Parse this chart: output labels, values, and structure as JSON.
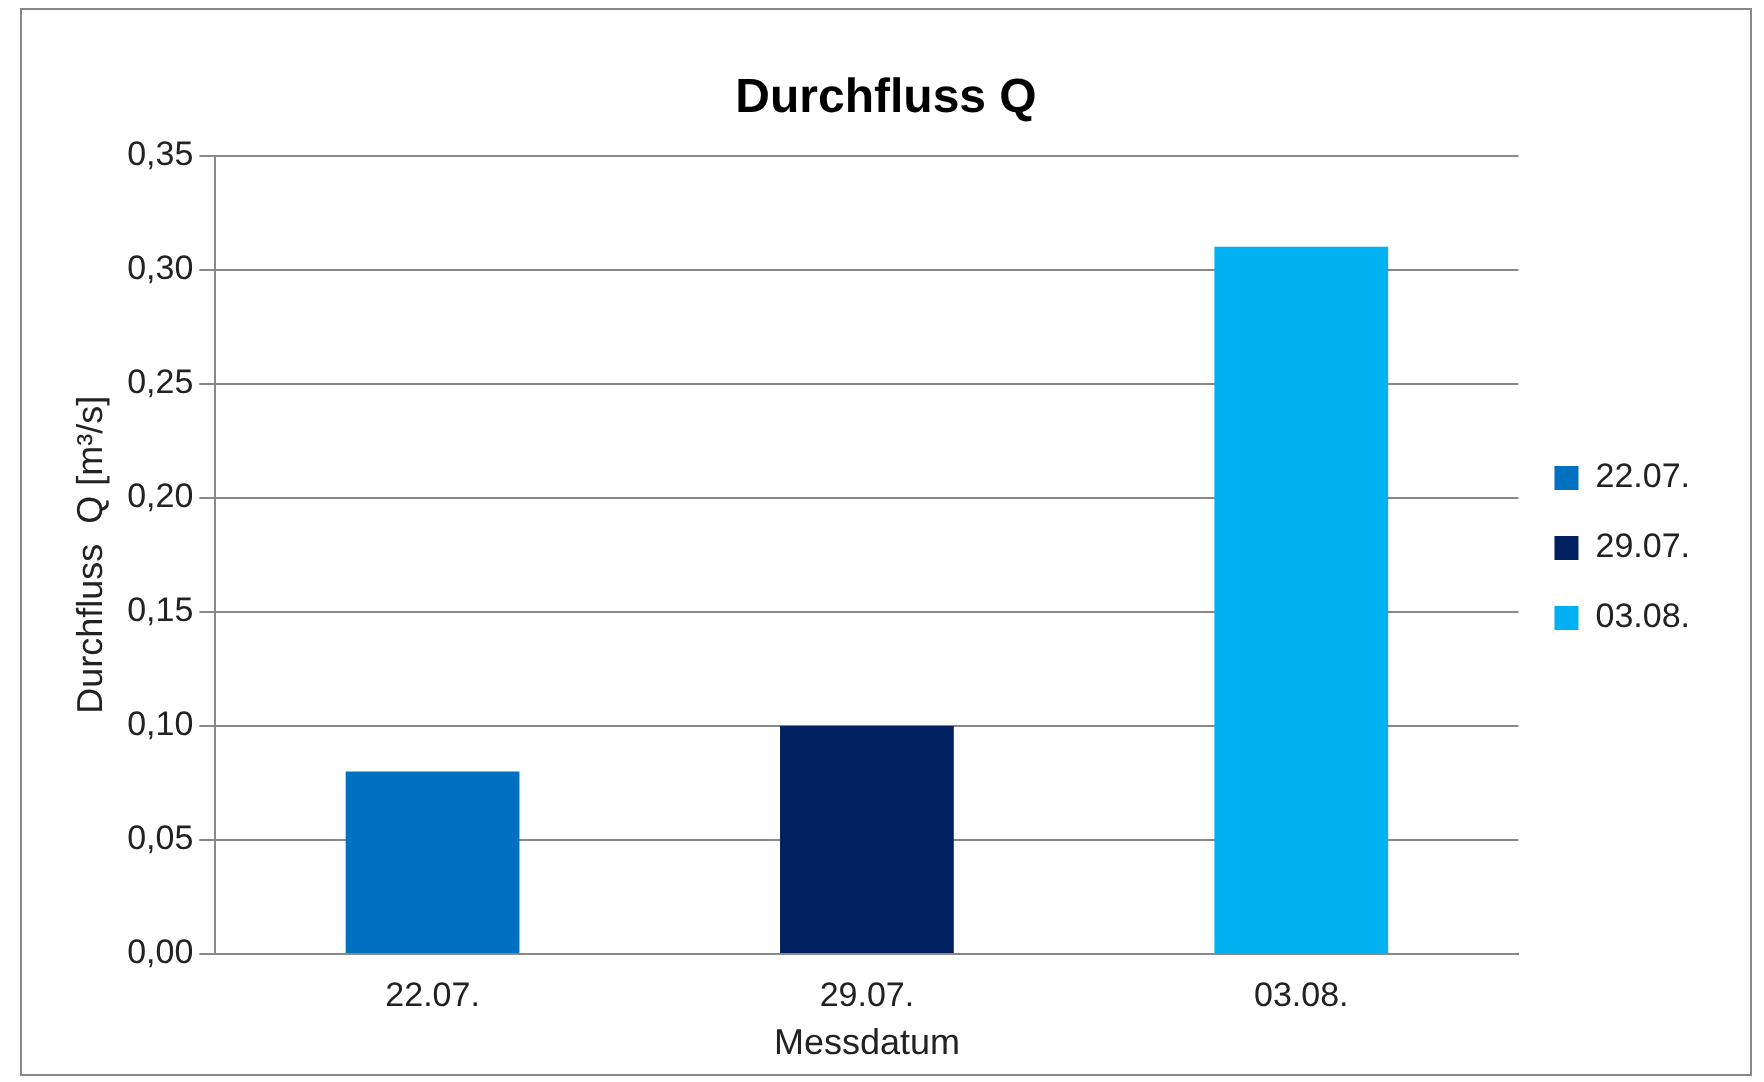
{
  "chart_data": {
    "type": "bar",
    "title": "Durchfluss Q",
    "xlabel": "Messdatum",
    "ylabel": "Durchfluss  Q [m³/s]",
    "categories": [
      "22.07.",
      "29.07.",
      "03.08."
    ],
    "series": [
      {
        "name": "22.07.",
        "color": "#0070c0",
        "values": [
          0.08,
          null,
          null
        ]
      },
      {
        "name": "29.07.",
        "color": "#002060",
        "values": [
          null,
          0.1,
          null
        ]
      },
      {
        "name": "03.08.",
        "color": "#00b0f0",
        "values": [
          null,
          null,
          0.31
        ]
      }
    ],
    "ylim": [
      0,
      0.35
    ],
    "yticks": [
      {
        "value": 0,
        "label": "0,00"
      },
      {
        "value": 0.05,
        "label": "0,05"
      },
      {
        "value": 0.1,
        "label": "0,10"
      },
      {
        "value": 0.15,
        "label": "0,15"
      },
      {
        "value": 0.2,
        "label": "0,20"
      },
      {
        "value": 0.25,
        "label": "0,25"
      },
      {
        "value": 0.3,
        "label": "0,30"
      },
      {
        "value": 0.35,
        "label": "0,35"
      }
    ],
    "grid": "y",
    "legend": "right"
  }
}
